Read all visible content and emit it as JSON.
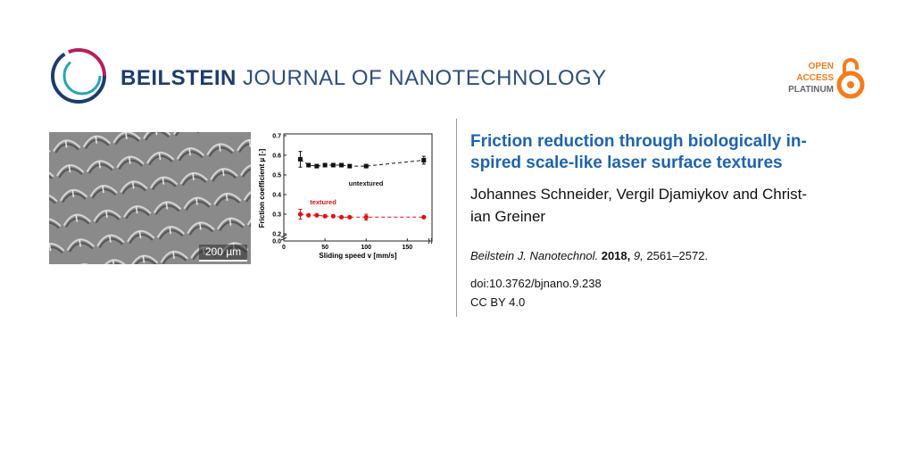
{
  "header": {
    "journal_bold": "BEILSTEIN",
    "journal_rest": "JOURNAL OF NANOTECHNOLOGY",
    "badge": [
      "OPEN",
      "ACCESS",
      "PLATINUM"
    ]
  },
  "figure": {
    "scale_bar": "200 µm"
  },
  "article": {
    "title_lines": [
      "Friction reduction through biologically in-",
      "spired scale-like laser surface textures"
    ],
    "author_lines": [
      "Johannes Schneider, Vergil Djamiykov and Christ-",
      "ian Greiner"
    ],
    "citation": {
      "journal": "Beilstein J. Nanotechnol.",
      "year": "2018,",
      "volume": "9,",
      "pages": "2561–2572."
    },
    "doi": "doi:10.3762/bjnano.9.238",
    "license": "CC BY 4.0"
  },
  "chart_data": {
    "type": "scatter-line",
    "xlabel": "Sliding speed v [mm/s]",
    "ylabel": "Friction coefficient µ [-]",
    "x": [
      20,
      30,
      40,
      50,
      60,
      70,
      80,
      100,
      170
    ],
    "series": [
      {
        "name": "untextured",
        "color": "#111111",
        "values": [
          0.58,
          0.55,
          0.545,
          0.55,
          0.55,
          0.55,
          0.545,
          0.545,
          0.575
        ],
        "errors": [
          0.04,
          null,
          null,
          null,
          null,
          null,
          null,
          null,
          0.02
        ]
      },
      {
        "name": "textured",
        "color": "#e01010",
        "values": [
          0.3,
          0.295,
          0.295,
          0.29,
          0.29,
          0.285,
          0.285,
          0.285,
          0.285
        ],
        "errors": [
          0.025,
          null,
          null,
          null,
          null,
          null,
          null,
          0.015,
          null
        ]
      }
    ],
    "xlim": [
      0,
      180
    ],
    "xticks": [
      0,
      50,
      100,
      150
    ],
    "ylim": [
      0,
      0.7
    ],
    "ybreak": [
      0,
      0.2
    ],
    "yticks": [
      {
        "value": 0,
        "label": "0.0"
      },
      0.2,
      0.3,
      0.4,
      0.5,
      0.6,
      0.7
    ]
  }
}
